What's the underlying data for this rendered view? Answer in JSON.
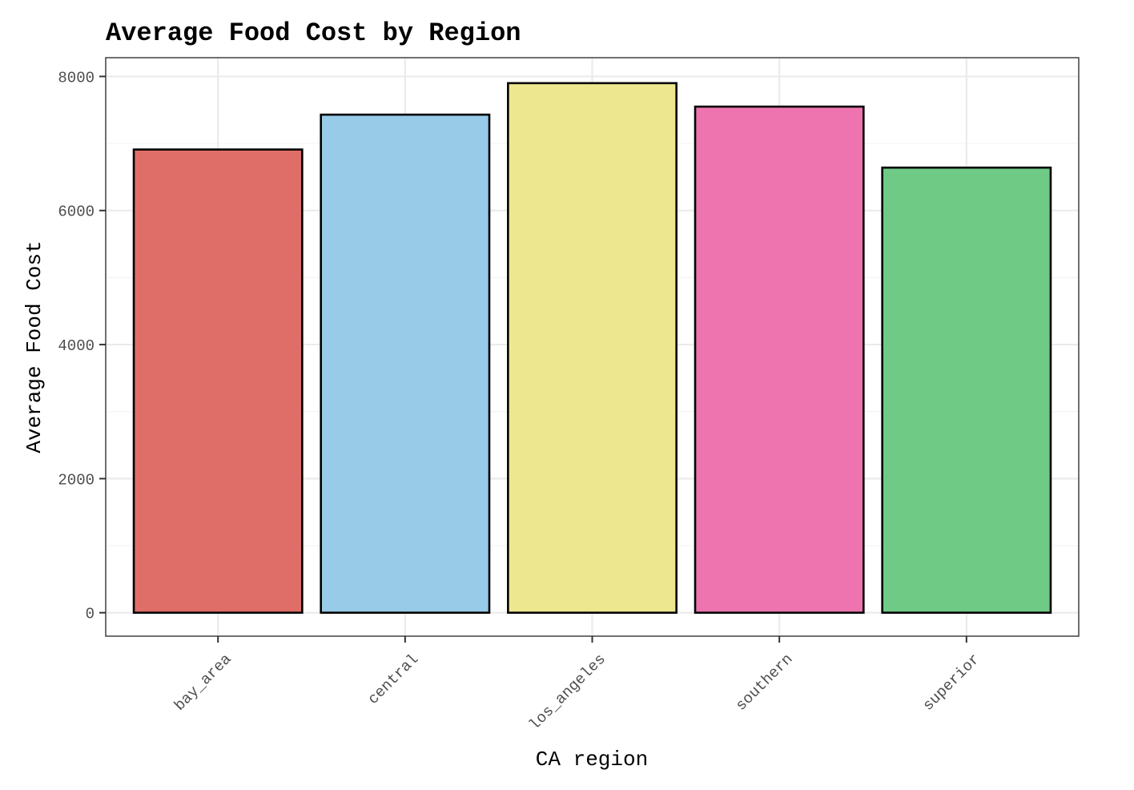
{
  "chart_data": {
    "type": "bar",
    "title": "Average Food Cost by Region",
    "xlabel": "CA region",
    "ylabel": "Average Food Cost",
    "categories": [
      "bay_area",
      "central",
      "los_angeles",
      "southern",
      "superior"
    ],
    "values": [
      6910,
      7430,
      7900,
      7550,
      6640
    ],
    "colors": [
      "#df6e68",
      "#98cbe8",
      "#ede88f",
      "#ee74b0",
      "#6fca86"
    ],
    "ylim": [
      -350,
      8280
    ],
    "yticks": [
      0,
      2000,
      4000,
      6000,
      8000
    ],
    "ytick_labels": [
      "0",
      "2000",
      "4000",
      "6000",
      "8000"
    ],
    "grid": true,
    "legend": "none"
  }
}
